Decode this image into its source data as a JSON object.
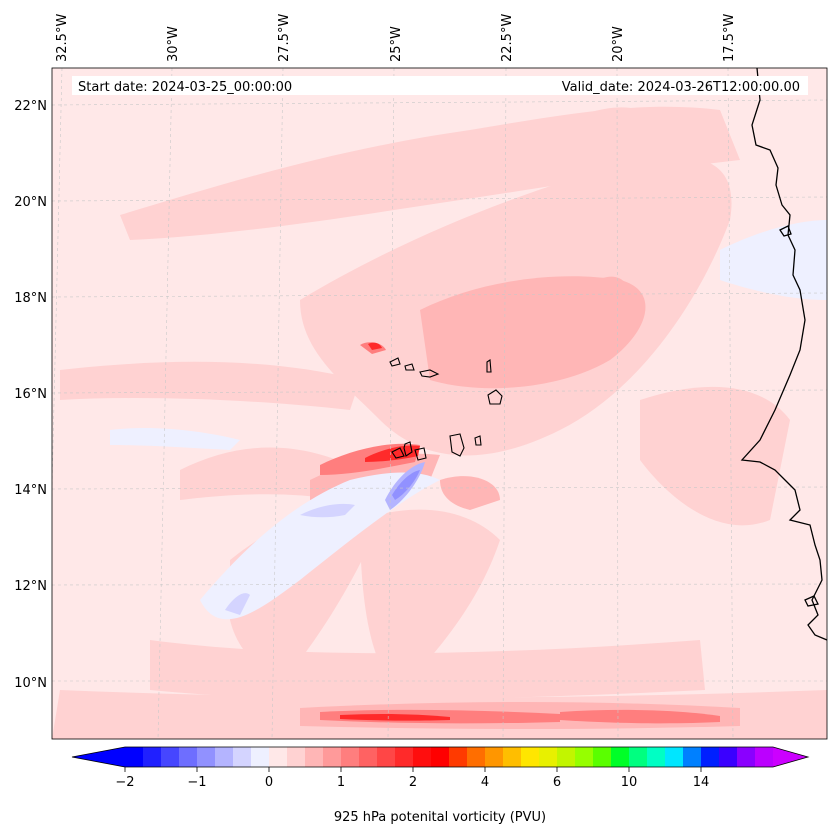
{
  "map": {
    "start_label": "Start date: 2024-03-25_00:00:00",
    "valid_label": "Valid_date: 2024-03-26T12:00:00.00",
    "lon_labels": [
      "32.5°W",
      "30°W",
      "27.5°W",
      "25°W",
      "22.5°W",
      "20°W",
      "17.5°W"
    ],
    "lat_labels": [
      "22°N",
      "20°N",
      "18°N",
      "16°N",
      "14°N",
      "12°N",
      "10°N"
    ],
    "field": "potential vorticity",
    "level_hpa": 925
  },
  "colorbar": {
    "label": "925 hPa potenital vorticity (PVU)",
    "tick_labels": [
      "−2",
      "−1",
      "0",
      "1",
      "2",
      "4",
      "6",
      "10",
      "14"
    ],
    "tick_values": [
      -2,
      -1,
      0,
      1,
      2,
      4,
      6,
      10,
      14
    ],
    "colors": [
      "#0000ff",
      "#2020ff",
      "#4646ff",
      "#6e6eff",
      "#9191ff",
      "#b4b4ff",
      "#d4d4ff",
      "#eef0ff",
      "#ffe8e8",
      "#ffd2d2",
      "#ffb6b6",
      "#ff9a9a",
      "#ff7e7e",
      "#ff6262",
      "#ff4646",
      "#ff2a2a",
      "#ff0e0e",
      "#ff0000",
      "#ff3a00",
      "#ff6e00",
      "#ff9600",
      "#ffbe00",
      "#ffe600",
      "#e8f000",
      "#c2f500",
      "#96ff00",
      "#5aff00",
      "#00ff28",
      "#00ff80",
      "#00ffc4",
      "#00e6ff",
      "#0080ff",
      "#0020ff",
      "#3a00ff",
      "#8a00ff",
      "#bb00ff"
    ],
    "extend_low_color": "#0000ff",
    "extend_high_color": "#cc00ff"
  },
  "colors": {
    "background_pv": "#ffe8e8",
    "coast": "#000000"
  }
}
